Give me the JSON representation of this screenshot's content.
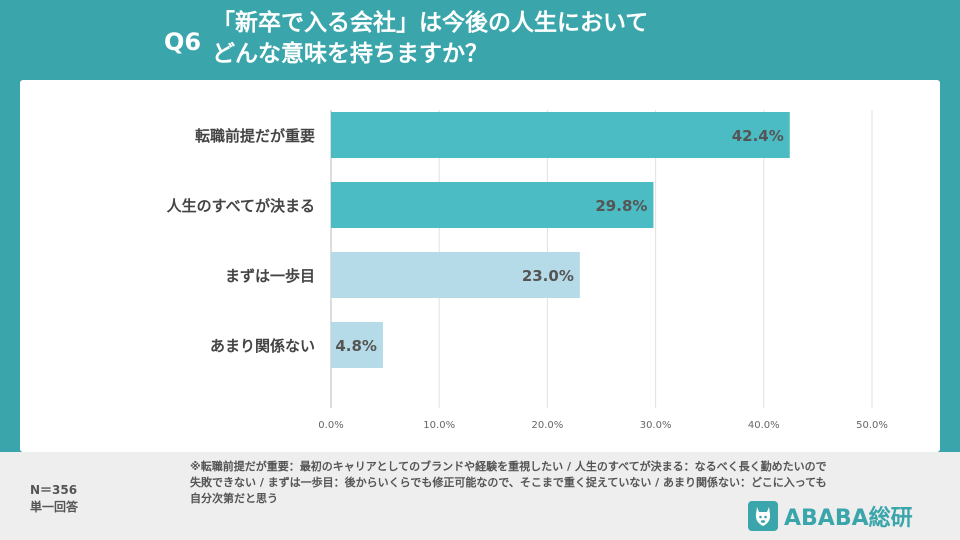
{
  "header": {
    "question_number": "Q6",
    "title_line1": "「新卒で入る会社」は今後の人生において",
    "title_line2": "どんな意味を持ちますか？"
  },
  "chart_data": {
    "type": "bar",
    "orientation": "horizontal",
    "categories": [
      "転職前提だが重要",
      "人生のすべてが決まる",
      "まずは一歩目",
      "あまり関係ない"
    ],
    "values": [
      42.4,
      29.8,
      23.0,
      4.8
    ],
    "value_labels": [
      "42.4%",
      "29.8%",
      "23.0%",
      "4.8%"
    ],
    "bar_colors": [
      "#4bbcc4",
      "#4bbcc4",
      "#b5dbe8",
      "#b5dbe8"
    ],
    "xlim": [
      0,
      50
    ],
    "xticks": [
      0,
      10,
      20,
      30,
      40,
      50
    ],
    "xtick_labels": [
      "0.0%",
      "10.0%",
      "20.0%",
      "30.0%",
      "40.0%",
      "50.0%"
    ],
    "grid": true
  },
  "footer": {
    "sample_size": "N＝356",
    "answer_type": "単一回答",
    "note": "※転職前提だが重要：最初のキャリアとしてのブランドや経験を重視したい / 人生のすべてが決まる：なるべく長く勤めたいので失敗できない / まずは一歩目：後からいくらでも修正可能なので、そこまで重く捉えていない / あまり関係ない：どこに入っても自分次第だと思う",
    "logo_text": "ABABA総研",
    "logo_icon": "alpaca-icon"
  },
  "colors": {
    "brand": "#3aa6ac",
    "bar_primary": "#4bbcc4",
    "bar_secondary": "#b5dbe8"
  }
}
